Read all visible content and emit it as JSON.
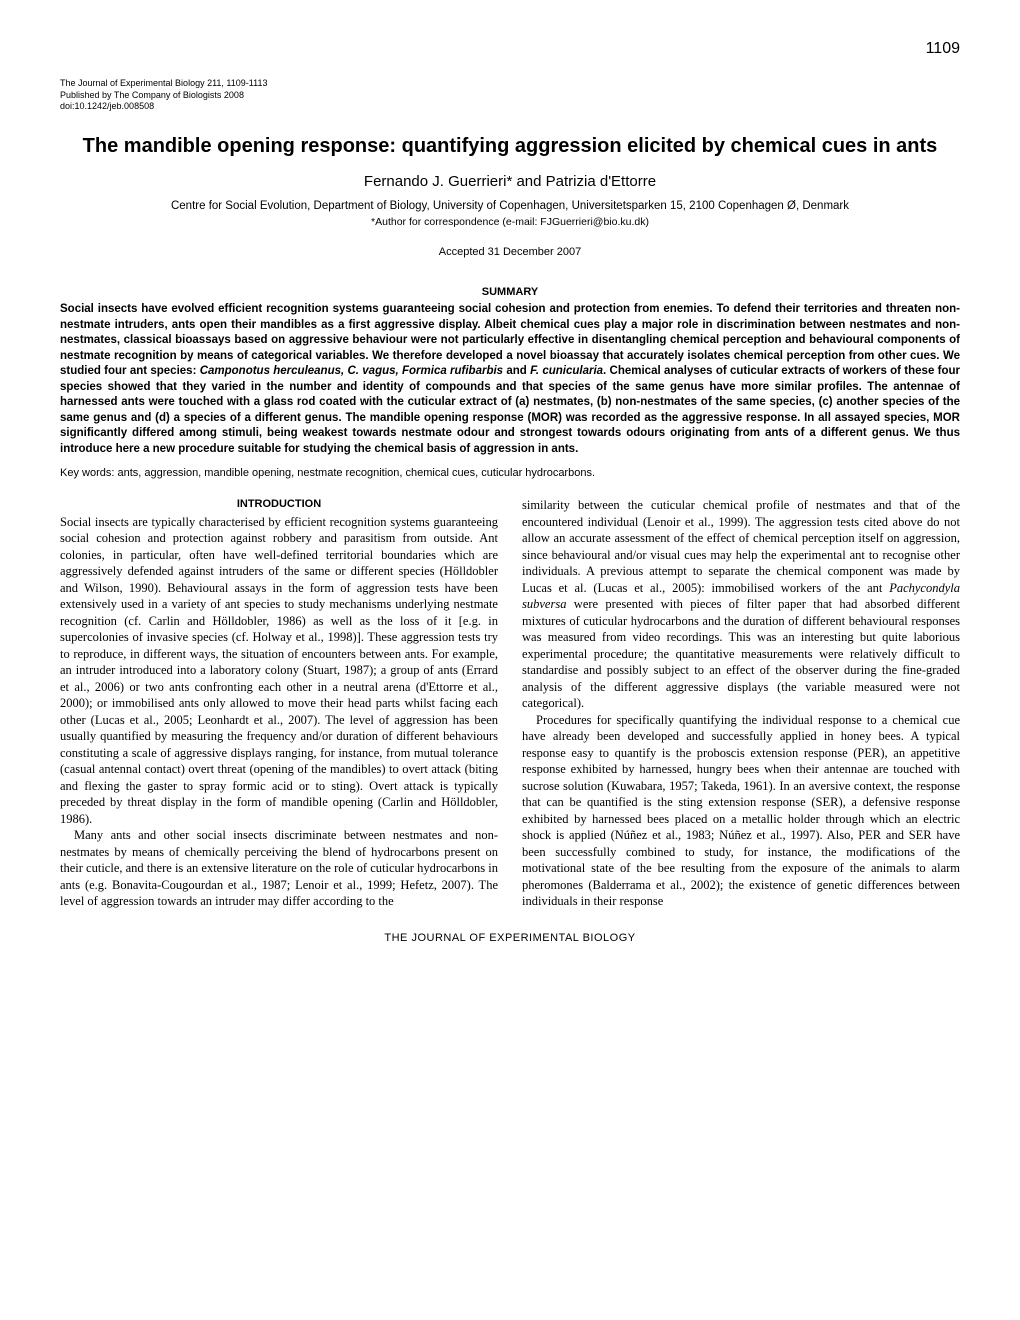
{
  "page_number": "1109",
  "journal_info": {
    "line1": "The Journal of Experimental Biology 211, 1109-1113",
    "line2": "Published by The Company of Biologists 2008",
    "line3": "doi:10.1242/jeb.008508"
  },
  "title": "The mandible opening response: quantifying aggression elicited by chemical cues in ants",
  "authors": "Fernando J. Guerrieri* and Patrizia d'Ettorre",
  "affiliation": "Centre for Social Evolution, Department of Biology, University of Copenhagen, Universitetsparken 15, 2100 Copenhagen Ø, Denmark",
  "correspondence": "*Author for correspondence (e-mail: FJGuerrieri@bio.ku.dk)",
  "accepted": "Accepted 31 December 2007",
  "summary_heading": "SUMMARY",
  "summary_p1": "Social insects have evolved efficient recognition systems guaranteeing social cohesion and protection from enemies. To defend their territories and threaten non-nestmate intruders, ants open their mandibles as a first aggressive display. Albeit chemical cues play a major role in discrimination between nestmates and non-nestmates, classical bioassays based on aggressive behaviour were not particularly effective in disentangling chemical perception and behavioural components of nestmate recognition by means of categorical variables. We therefore developed a novel bioassay that accurately isolates chemical perception from other cues. We studied four ant species: ",
  "summary_species": "Camponotus herculeanus, C. vagus, Formica rufibarbis",
  "summary_and": " and ",
  "summary_species2": "F. cunicularia",
  "summary_p2": ". Chemical analyses of cuticular extracts of workers of these four species showed that they varied in the number and identity of compounds and that species of the same genus have more similar profiles. The antennae of harnessed ants were touched with a glass rod coated with the cuticular extract of (a) nestmates, (b) non-nestmates of the same species, (c) another species of the same genus and (d) a species of a different genus. The mandible opening response (MOR) was recorded as the aggressive response. In all assayed species, MOR significantly differed among stimuli, being weakest towards nestmate odour and strongest towards odours originating from ants of a different genus. We thus introduce here a new procedure suitable for studying the chemical basis of aggression in ants.",
  "keywords": "Key words: ants, aggression, mandible opening, nestmate recognition, chemical cues, cuticular hydrocarbons.",
  "intro_heading": "INTRODUCTION",
  "col1_p1": "Social insects are typically characterised by efficient recognition systems guaranteeing social cohesion and protection against robbery and parasitism from outside. Ant colonies, in particular, often have well-defined territorial boundaries which are aggressively defended against intruders of the same or different species (Hölldobler and Wilson, 1990). Behavioural assays in the form of aggression tests have been extensively used in a variety of ant species to study mechanisms underlying nestmate recognition (cf. Carlin and Hölldobler, 1986) as well as the loss of it [e.g. in supercolonies of invasive species (cf. Holway et al., 1998)]. These aggression tests try to reproduce, in different ways, the situation of encounters between ants. For example, an intruder introduced into a laboratory colony (Stuart, 1987); a group of ants (Errard et al., 2006) or two ants confronting each other in a neutral arena (d'Ettorre et al., 2000); or immobilised ants only allowed to move their head parts whilst facing each other (Lucas et al., 2005; Leonhardt et al., 2007). The level of aggression has been usually quantified by measuring the frequency and/or duration of different behaviours constituting a scale of aggressive displays ranging, for instance, from mutual tolerance (casual antennal contact) overt threat (opening of the mandibles) to overt attack (biting and flexing the gaster to spray formic acid or to sting). Overt attack is typically preceded by threat display in the form of mandible opening (Carlin and Hölldobler, 1986).",
  "col1_p2": "Many ants and other social insects discriminate between nestmates and non-nestmates by means of chemically perceiving the blend of hydrocarbons present on their cuticle, and there is an extensive literature on the role of cuticular hydrocarbons in ants (e.g. Bonavita-Cougourdan et al., 1987; Lenoir et al., 1999; Hefetz, 2007). The level of aggression towards an intruder may differ according to the",
  "col2_p1a": "similarity between the cuticular chemical profile of nestmates and that of the encountered individual (Lenoir et al., 1999). The aggression tests cited above do not allow an accurate assessment of the effect of chemical perception itself on aggression, since behavioural and/or visual cues may help the experimental ant to recognise other individuals. A previous attempt to separate the chemical component was made by Lucas et al. (Lucas et al., 2005): immobilised workers of the ant ",
  "col2_species": "Pachycondyla subversa",
  "col2_p1b": " were presented with pieces of filter paper that had absorbed different mixtures of cuticular hydrocarbons and the duration of different behavioural responses was measured from video recordings. This was an interesting but quite laborious experimental procedure; the quantitative measurements were relatively difficult to standardise and possibly subject to an effect of the observer during the fine-graded analysis of the different aggressive displays (the variable measured were not categorical).",
  "col2_p2": "Procedures for specifically quantifying the individual response to a chemical cue have already been developed and successfully applied in honey bees. A typical response easy to quantify is the proboscis extension response (PER), an appetitive response exhibited by harnessed, hungry bees when their antennae are touched with sucrose solution (Kuwabara, 1957; Takeda, 1961). In an aversive context, the response that can be quantified is the sting extension response (SER), a defensive response exhibited by harnessed bees placed on a metallic holder through which an electric shock is applied (Núñez et al., 1983; Núñez et al., 1997). Also, PER and SER have been successfully combined to study, for instance, the modifications of the motivational state of the bee resulting from the exposure of the animals to alarm pheromones (Balderrama et al., 2002); the existence of genetic differences between individuals in their response",
  "footer": "THE JOURNAL OF EXPERIMENTAL BIOLOGY"
}
